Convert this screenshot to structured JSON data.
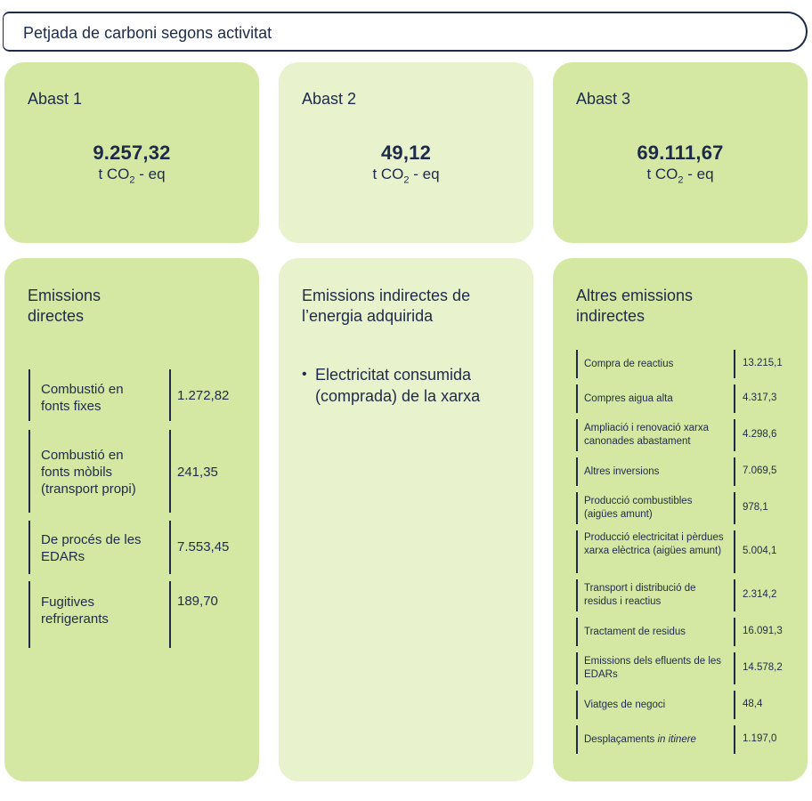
{
  "header": {
    "title": "Petjada de carboni segons activitat"
  },
  "abast": [
    {
      "label": "Abast 1",
      "value": "9.257,32",
      "unit_prefix": "t CO",
      "unit_sub": "2",
      "unit_suffix": " - eq"
    },
    {
      "label": "Abast 2",
      "value": "49,12",
      "unit_prefix": "t CO",
      "unit_sub": "2",
      "unit_suffix": " - eq"
    },
    {
      "label": "Abast 3",
      "value": "69.111,67",
      "unit_prefix": "t CO",
      "unit_sub": "2",
      "unit_suffix": " - eq"
    }
  ],
  "direct": {
    "title": "Emissions directes",
    "rows": [
      {
        "label": "Combustió en fonts fixes",
        "value": "1.272,82"
      },
      {
        "label": "Combustió en fonts mòbils (transport propi)",
        "value": "241,35"
      },
      {
        "label": "De procés de les EDARs",
        "value": "7.553,45"
      },
      {
        "label": "Fugitives refrigerants",
        "value": "189,70"
      }
    ]
  },
  "energy": {
    "title": "Emissions indirectes de l’energia adquirida",
    "items": [
      "Electricitat consumida (comprada) de la xarxa"
    ]
  },
  "other": {
    "title": "Altres emissions indirectes",
    "rows": [
      {
        "label": "Compra de reactius",
        "value": "13.215,1"
      },
      {
        "label": "Compres aigua alta",
        "value": "4.317,3"
      },
      {
        "label": "Ampliació i renovació xarxa canonades abastament",
        "value": "4.298,6"
      },
      {
        "label": "Altres inversions",
        "value": "7.069,5"
      },
      {
        "label": "Producció combustibles (aigües amunt)",
        "value": "978,1"
      },
      {
        "label": "Producció electricitat i pèrdues xarxa elèctrica (aigües amunt)",
        "value": "5.004,1"
      },
      {
        "label": "Transport i distribució de residus i reactius",
        "value": "2.314,2"
      },
      {
        "label": "Tractament de residus",
        "value": "16.091,3"
      },
      {
        "label": "Emissions dels efluents de les EDARs",
        "value": "14.578,2"
      },
      {
        "label": "Viatges de negoci",
        "value": "48,4"
      },
      {
        "label": "Desplaçaments",
        "label_italic": "in itinere",
        "value": "1.197,0"
      }
    ]
  }
}
